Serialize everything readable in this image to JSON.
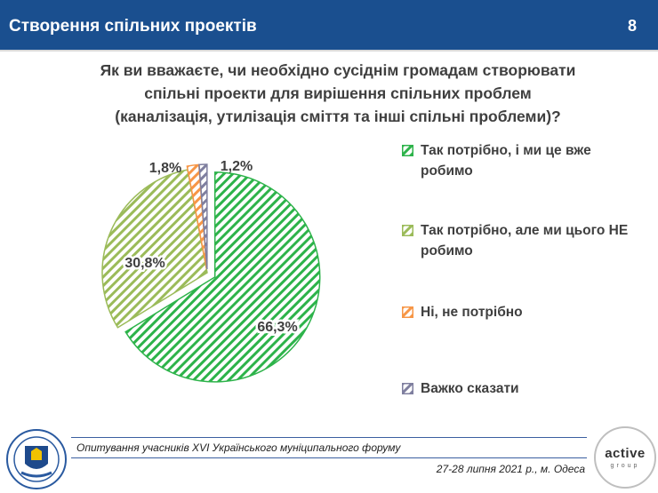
{
  "header": {
    "title": "Створення спільних проектів",
    "page_number": "8"
  },
  "question": {
    "line1": "Як ви вважаєте, чи необхідно сусіднім громадам створювати",
    "line2": "спільні проекти для вирішення спільних проблем",
    "line3": "(каналізація, утилізація сміття та інші спільні проблеми)?"
  },
  "chart_data": {
    "type": "pie",
    "slices": [
      {
        "label": "Так потрібно, і ми це вже робимо",
        "value": 66.3,
        "value_label": "66,3%",
        "color": "#2db34a"
      },
      {
        "label": "Так потрібно, але ми цього НЕ робимо",
        "value": 30.8,
        "value_label": "30,8%",
        "color": "#9bbb59"
      },
      {
        "label": "Ні, не потрібно",
        "value": 1.8,
        "value_label": "1,8%",
        "color": "#f79646"
      },
      {
        "label": "Важко сказати",
        "value": 1.2,
        "value_label": "1,2%",
        "color": "#7f7f9f"
      }
    ],
    "legend_position": "right",
    "fill_pattern": "diagonal-hatch"
  },
  "footer": {
    "survey_note": "Опитування учасників XVI Українського муніципального форуму",
    "date_note": "27-28 липня 2021 р., м. Одеса",
    "brand_main": "active",
    "brand_sub": "group"
  }
}
